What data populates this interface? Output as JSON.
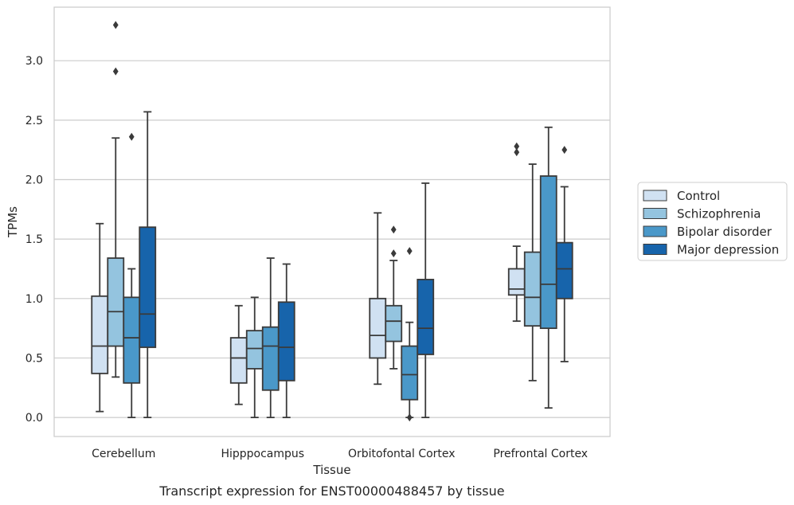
{
  "chart_data": {
    "type": "boxplot",
    "caption": "Transcript expression for ENST00000488457 by tissue",
    "xlabel": "Tissue",
    "ylabel": "TPMs",
    "ylim": [
      -0.16,
      3.45
    ],
    "yticks": [
      0.0,
      0.5,
      1.0,
      1.5,
      2.0,
      2.5,
      3.0
    ],
    "ytick_labels": [
      "0.0",
      "0.5",
      "1.0",
      "1.5",
      "2.0",
      "2.5",
      "3.0"
    ],
    "grid": "horizontal",
    "legend_position": "right",
    "categories": [
      "Cerebellum",
      "Hipppocampus",
      "Orbitofontal Cortex",
      "Prefrontal Cortex"
    ],
    "series": [
      {
        "name": "Control",
        "color": "#d0e1f2",
        "boxes": [
          {
            "whislo": 0.05,
            "q1": 0.37,
            "med": 0.6,
            "q3": 1.02,
            "whishi": 1.63,
            "fliers": []
          },
          {
            "whislo": 0.11,
            "q1": 0.29,
            "med": 0.5,
            "q3": 0.67,
            "whishi": 0.94,
            "fliers": []
          },
          {
            "whislo": 0.28,
            "q1": 0.5,
            "med": 0.69,
            "q3": 1.0,
            "whishi": 1.72,
            "fliers": []
          },
          {
            "whislo": 0.81,
            "q1": 1.03,
            "med": 1.08,
            "q3": 1.25,
            "whishi": 1.44,
            "fliers": [
              2.23,
              2.28
            ]
          }
        ]
      },
      {
        "name": "Schizophrenia",
        "color": "#94c4df",
        "boxes": [
          {
            "whislo": 0.34,
            "q1": 0.6,
            "med": 0.89,
            "q3": 1.34,
            "whishi": 2.35,
            "fliers": [
              2.91,
              3.3
            ]
          },
          {
            "whislo": 0.0,
            "q1": 0.41,
            "med": 0.58,
            "q3": 0.73,
            "whishi": 1.01,
            "fliers": []
          },
          {
            "whislo": 0.41,
            "q1": 0.64,
            "med": 0.81,
            "q3": 0.94,
            "whishi": 1.32,
            "fliers": [
              1.38,
              1.58
            ]
          },
          {
            "whislo": 0.31,
            "q1": 0.77,
            "med": 1.01,
            "q3": 1.39,
            "whishi": 2.13,
            "fliers": []
          }
        ]
      },
      {
        "name": "Bipolar disorder",
        "color": "#4a98c9",
        "boxes": [
          {
            "whislo": 0.0,
            "q1": 0.29,
            "med": 0.67,
            "q3": 1.01,
            "whishi": 1.25,
            "fliers": [
              2.36
            ]
          },
          {
            "whislo": 0.0,
            "q1": 0.23,
            "med": 0.6,
            "q3": 0.76,
            "whishi": 1.34,
            "fliers": []
          },
          {
            "whislo": 0.0,
            "q1": 0.15,
            "med": 0.36,
            "q3": 0.6,
            "whishi": 0.8,
            "fliers": [
              0.0,
              1.4
            ]
          },
          {
            "whislo": 0.08,
            "q1": 0.75,
            "med": 1.12,
            "q3": 2.03,
            "whishi": 2.44,
            "fliers": []
          }
        ]
      },
      {
        "name": "Major depression",
        "color": "#1764ab",
        "boxes": [
          {
            "whislo": 0.0,
            "q1": 0.59,
            "med": 0.87,
            "q3": 1.6,
            "whishi": 2.57,
            "fliers": []
          },
          {
            "whislo": 0.0,
            "q1": 0.31,
            "med": 0.59,
            "q3": 0.97,
            "whishi": 1.29,
            "fliers": []
          },
          {
            "whislo": 0.0,
            "q1": 0.53,
            "med": 0.75,
            "q3": 1.16,
            "whishi": 1.97,
            "fliers": []
          },
          {
            "whislo": 0.47,
            "q1": 1.0,
            "med": 1.25,
            "q3": 1.47,
            "whishi": 1.94,
            "fliers": [
              2.25
            ]
          }
        ]
      }
    ]
  }
}
